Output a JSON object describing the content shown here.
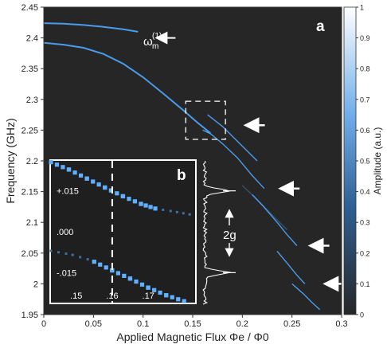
{
  "chart_data": [
    {
      "panel_label": "a",
      "type": "heatmap",
      "title": "",
      "xlabel": "Applied Magnetic Flux Φe / Φ0",
      "ylabel": "Frequency (GHz)",
      "xlim": [
        0,
        0.3
      ],
      "ylim": [
        1.95,
        2.45
      ],
      "x_ticks": [
        "0",
        "0.05",
        "0.1",
        "0.15",
        "0.2",
        "0.25",
        "0.3"
      ],
      "y_ticks": [
        "1.95",
        "2",
        "2.05",
        "2.1",
        "2.15",
        "2.2",
        "2.25",
        "2.3",
        "2.35",
        "2.4",
        "2.45"
      ],
      "background_color": "#262626",
      "trace_color": "#4fa8ff",
      "annotation_label": "ω_m^(1)",
      "annotation_main": "ω",
      "annotation_sub": "m",
      "annotation_sup": "(1)",
      "annotation_arrow_at": [
        0.115,
        2.4
      ],
      "series": [
        {
          "x": [
            0.0,
            0.02,
            0.04,
            0.06,
            0.08,
            0.095
          ],
          "y": [
            2.424,
            2.423,
            2.421,
            2.418,
            2.414,
            2.41
          ]
        },
        {
          "x": [
            0.0,
            0.02,
            0.04,
            0.06,
            0.08,
            0.1,
            0.12,
            0.14,
            0.155,
            0.168
          ],
          "y": [
            2.392,
            2.389,
            2.384,
            2.374,
            2.358,
            2.336,
            2.31,
            2.283,
            2.262,
            2.245
          ]
        },
        {
          "x": [
            0.16,
            0.168,
            0.18,
            0.195,
            0.21,
            0.222
          ],
          "y": [
            2.25,
            2.244,
            2.228,
            2.205,
            2.176,
            2.155
          ]
        },
        {
          "x": [
            0.165,
            0.18,
            0.2,
            0.215
          ],
          "y": [
            2.275,
            2.256,
            2.224,
            2.2
          ]
        },
        {
          "x": [
            0.21,
            0.22,
            0.235,
            0.245,
            0.255
          ],
          "y": [
            2.145,
            2.128,
            2.1,
            2.08,
            2.062
          ]
        },
        {
          "x": [
            0.235,
            0.245,
            0.255,
            0.263
          ],
          "y": [
            2.053,
            2.034,
            2.014,
            2.0
          ]
        },
        {
          "x": [
            0.25,
            0.255,
            0.262,
            0.27,
            0.278
          ],
          "y": [
            2.0,
            1.993,
            1.983,
            1.97,
            1.958
          ]
        },
        {
          "x": [
            0.2,
            0.215,
            0.23,
            0.245
          ],
          "y": [
            2.16,
            2.137,
            2.112,
            2.088
          ]
        }
      ],
      "right_arrows_at": [
        [
          0.205,
          2.258
        ],
        [
          0.24,
          2.155
        ],
        [
          0.27,
          2.062
        ],
        [
          0.285,
          2.0
        ]
      ],
      "dashed_box": {
        "x": [
          0.143,
          0.183
        ],
        "y": [
          2.235,
          2.297
        ]
      }
    },
    {
      "panel_label": "b",
      "type": "heatmap",
      "x_ticks": [
        ".15",
        ".16",
        ".17"
      ],
      "y_ticks": [
        "+.015",
        ".000",
        "-.015"
      ],
      "xlim": [
        0.143,
        0.183
      ],
      "ylim": [
        -0.026,
        0.026
      ],
      "dashed_line_x": 0.16,
      "upper_branch": {
        "x": [
          0.143,
          0.148,
          0.153,
          0.158,
          0.163,
          0.168,
          0.172
        ],
        "y": [
          0.0255,
          0.0228,
          0.0195,
          0.0162,
          0.013,
          0.0102,
          0.0085
        ]
      },
      "upper_faint": {
        "x": [
          0.172,
          0.178,
          0.183
        ],
        "y": [
          0.0085,
          0.0072,
          0.006
        ]
      },
      "lower_faint": {
        "x": [
          0.143,
          0.149,
          0.155
        ],
        "y": [
          -0.007,
          -0.0085,
          -0.0108
        ]
      },
      "lower_branch": {
        "x": [
          0.155,
          0.16,
          0.165,
          0.17,
          0.175,
          0.18
        ],
        "y": [
          -0.011,
          -0.0142,
          -0.0172,
          -0.0205,
          -0.0233,
          -0.0255
        ]
      },
      "gap_label": "2g"
    }
  ],
  "colorbar": {
    "label": "Amplitude (a.u.)",
    "min": 0,
    "max": 1,
    "ticks": [
      "0",
      "0.1",
      "0.2",
      "0.3",
      "0.4",
      "0.5",
      "0.6",
      "0.7",
      "0.8",
      "0.9",
      "1"
    ]
  }
}
